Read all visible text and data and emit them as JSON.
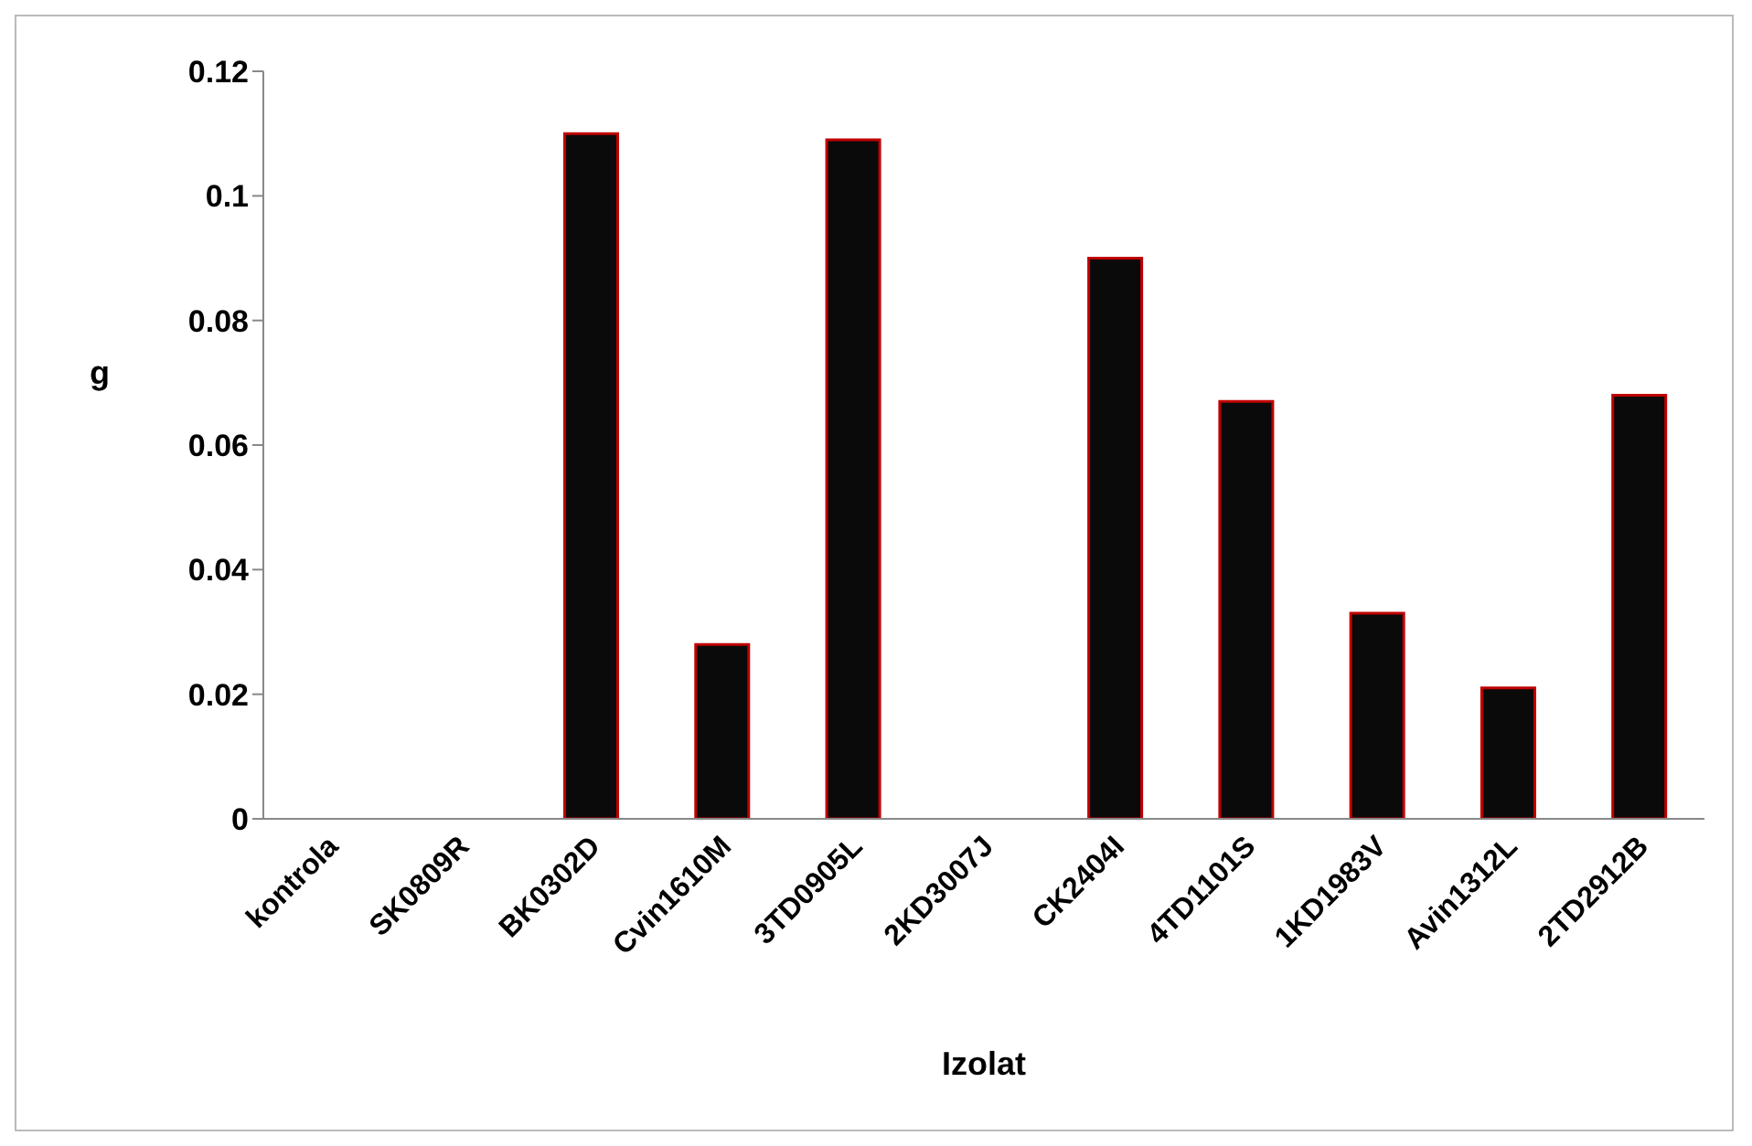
{
  "chart_data": {
    "type": "bar",
    "xlabel": "Izolat",
    "ylabel": "g",
    "categories": [
      "kontrola",
      "SK0809R",
      "BK0302D",
      "Cvin1610M",
      "3TD0905L",
      "2KD3007J",
      "CK2404I",
      "4TD1101S",
      "1KD1983V",
      "Avin1312L",
      "2TD2912B"
    ],
    "values": [
      0,
      0,
      0.11,
      0.028,
      0.109,
      0,
      0.09,
      0.067,
      0.033,
      0.021,
      0.068
    ],
    "color": "#0a0a0a",
    "ylim": [
      0,
      0.12
    ],
    "yticks": [
      0,
      0.02,
      0.04,
      0.06,
      0.08,
      0.1,
      0.12
    ],
    "grid": false,
    "legend": false
  }
}
